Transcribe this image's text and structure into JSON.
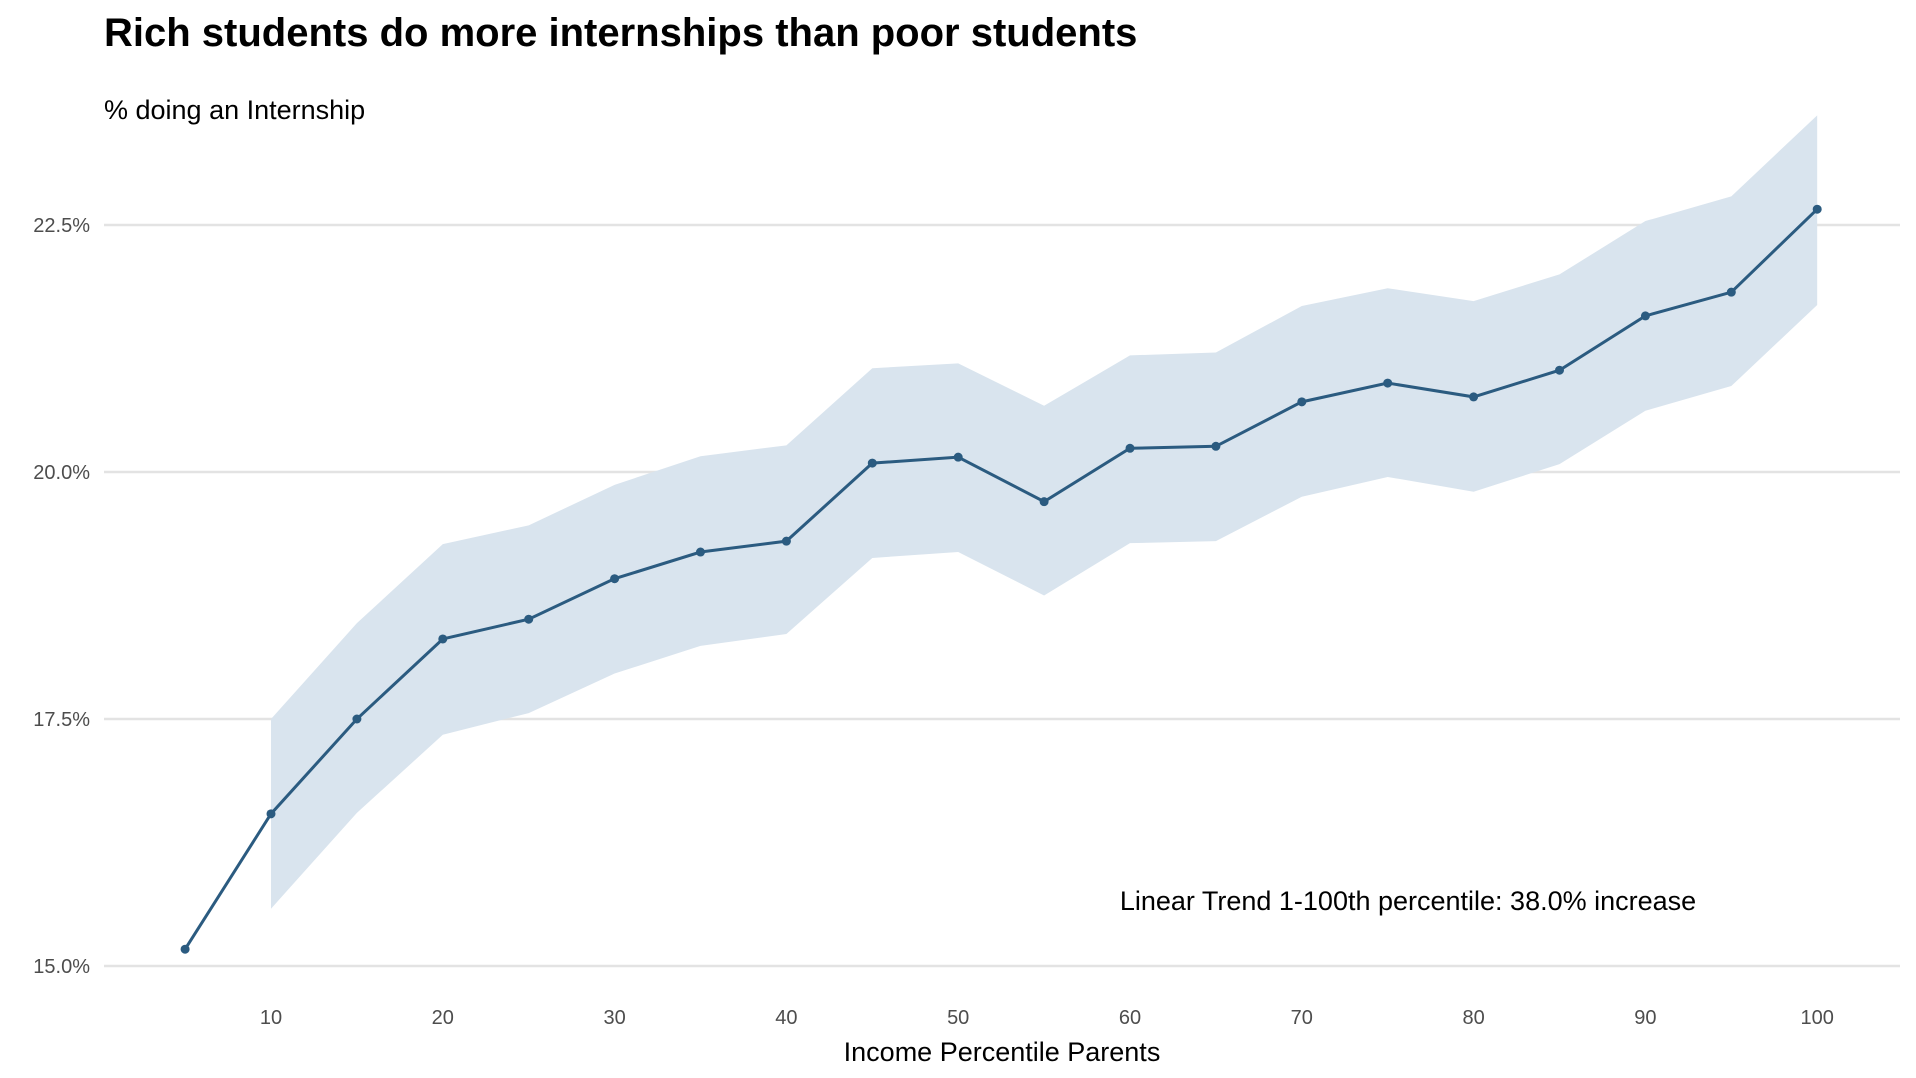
{
  "chart_data": {
    "type": "line",
    "title": "Rich students do more internships than poor students",
    "subtitle": "% doing an Internship",
    "xlabel": "Income Percentile Parents",
    "ylabel": "",
    "xlim": [
      3,
      103
    ],
    "ylim": [
      14.8,
      23.8
    ],
    "x_ticks": [
      10,
      20,
      30,
      40,
      50,
      60,
      70,
      80,
      90,
      100
    ],
    "y_ticks": [
      15.0,
      17.5,
      20.0,
      22.5
    ],
    "y_tick_labels": [
      "15.0%",
      "17.5%",
      "20.0%",
      "22.5%"
    ],
    "grid": "horizontal major",
    "colors": {
      "line": "#2b5b80",
      "band": "#d9e4ee",
      "grid": "#e3e3e3"
    },
    "annotation": "Linear Trend 1-100th percentile: 38.0% increase",
    "series": [
      {
        "x": [
          5,
          10,
          15,
          20,
          25,
          30,
          35,
          40,
          45,
          50,
          55,
          60,
          65,
          70,
          75,
          80,
          85,
          90,
          95,
          100
        ],
        "y": [
          15.17,
          16.54,
          17.5,
          18.31,
          18.51,
          18.92,
          19.19,
          19.3,
          20.09,
          20.15,
          19.7,
          20.24,
          20.26,
          20.71,
          20.9,
          20.76,
          21.03,
          21.58,
          21.82,
          22.66
        ],
        "ci_x": [
          10,
          15,
          20,
          25,
          30,
          35,
          40,
          45,
          50,
          55,
          60,
          65,
          70,
          75,
          80,
          85,
          90,
          95,
          100
        ],
        "ci_upper": [
          17.5,
          18.47,
          19.27,
          19.46,
          19.87,
          20.16,
          20.27,
          21.05,
          21.1,
          20.67,
          21.18,
          21.21,
          21.68,
          21.86,
          21.73,
          22.0,
          22.54,
          22.79,
          23.61
        ],
        "ci_lower": [
          15.58,
          16.55,
          17.34,
          17.56,
          17.96,
          18.24,
          18.36,
          19.13,
          19.19,
          18.75,
          19.28,
          19.3,
          19.75,
          19.95,
          19.8,
          20.08,
          20.62,
          20.87,
          21.69
        ]
      }
    ]
  }
}
